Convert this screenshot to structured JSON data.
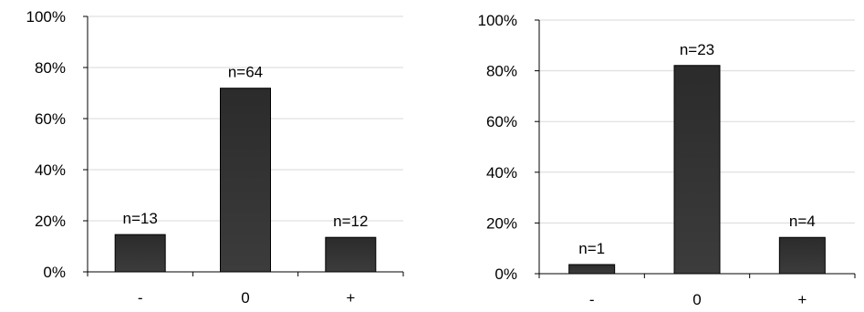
{
  "chart_data": [
    {
      "type": "bar",
      "categories": [
        "-",
        "0",
        "+"
      ],
      "values": [
        14.6,
        71.9,
        13.5
      ],
      "data_labels": [
        "n=13",
        "n=64",
        "n=12"
      ],
      "y_tick_labels": [
        "0%",
        "20%",
        "40%",
        "60%",
        "80%",
        "100%"
      ],
      "ylim": [
        0,
        100
      ],
      "grid": true,
      "bar_color": "#333333",
      "title": "",
      "xlabel": "",
      "ylabel": ""
    },
    {
      "type": "bar",
      "categories": [
        "-",
        "0",
        "+"
      ],
      "values": [
        3.6,
        82.1,
        14.3
      ],
      "data_labels": [
        "n=1",
        "n=23",
        "n=4"
      ],
      "y_tick_labels": [
        "0%",
        "20%",
        "40%",
        "60%",
        "80%",
        "100%"
      ],
      "ylim": [
        0,
        100
      ],
      "grid": true,
      "bar_color": "#333333",
      "title": "",
      "xlabel": "",
      "ylabel": ""
    }
  ]
}
